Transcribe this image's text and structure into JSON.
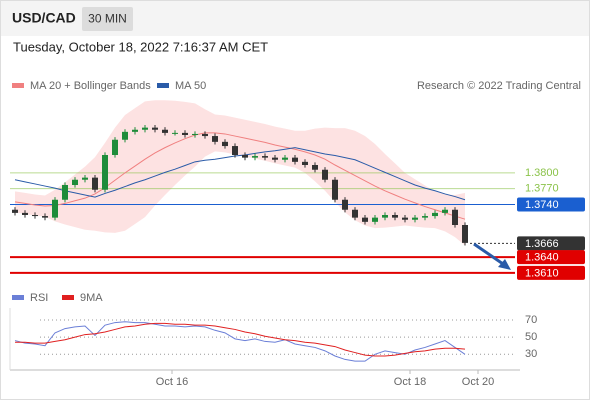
{
  "header": {
    "symbol": "USD/CAD",
    "timeframe": "30 MIN",
    "timestamp": "Tuesday, October 18, 2022 7:16:37 AM CET"
  },
  "chart_data": [
    {
      "type": "candlestick",
      "watermark": "Research © 2022 Trading Central",
      "up_color": "#1e8c3a",
      "down_color": "#333333",
      "xlim": [
        -0.5,
        49.5
      ],
      "ylim": [
        1.3587,
        1.3948
      ],
      "ohlc": [
        [
          1.373,
          1.3735,
          1.3719,
          1.3724
        ],
        [
          1.3724,
          1.3729,
          1.3715,
          1.372
        ],
        [
          1.372,
          1.3725,
          1.3713,
          1.3718
        ],
        [
          1.3718,
          1.3723,
          1.371,
          1.3715
        ],
        [
          1.3715,
          1.3754,
          1.371,
          1.3749
        ],
        [
          1.3749,
          1.3782,
          1.3744,
          1.3777
        ],
        [
          1.3777,
          1.3792,
          1.3772,
          1.3787
        ],
        [
          1.3787,
          1.3796,
          1.3782,
          1.3791
        ],
        [
          1.3791,
          1.3796,
          1.3763,
          1.3768
        ],
        [
          1.3768,
          1.3839,
          1.3763,
          1.3834
        ],
        [
          1.3834,
          1.3868,
          1.3829,
          1.3863
        ],
        [
          1.3863,
          1.3883,
          1.3858,
          1.3878
        ],
        [
          1.3878,
          1.3887,
          1.3873,
          1.3882
        ],
        [
          1.3882,
          1.3891,
          1.3877,
          1.3886
        ],
        [
          1.3886,
          1.3891,
          1.3877,
          1.3882
        ],
        [
          1.3882,
          1.3887,
          1.3871,
          1.3876
        ],
        [
          1.3876,
          1.3881,
          1.3871,
          1.3876
        ],
        [
          1.3876,
          1.3881,
          1.3867,
          1.3872
        ],
        [
          1.3872,
          1.3879,
          1.3867,
          1.3874
        ],
        [
          1.3874,
          1.3879,
          1.3865,
          1.387
        ],
        [
          1.387,
          1.3875,
          1.3854,
          1.3859
        ],
        [
          1.3859,
          1.3864,
          1.3846,
          1.3851
        ],
        [
          1.3851,
          1.3856,
          1.3829,
          1.3834
        ],
        [
          1.3834,
          1.3839,
          1.3824,
          1.3829
        ],
        [
          1.3829,
          1.3837,
          1.3824,
          1.3832
        ],
        [
          1.3832,
          1.3837,
          1.3824,
          1.3829
        ],
        [
          1.3829,
          1.3834,
          1.382,
          1.3825
        ],
        [
          1.3825,
          1.3834,
          1.382,
          1.3829
        ],
        [
          1.3829,
          1.3834,
          1.3816,
          1.3821
        ],
        [
          1.3821,
          1.3826,
          1.381,
          1.3815
        ],
        [
          1.3815,
          1.382,
          1.3801,
          1.3806
        ],
        [
          1.3806,
          1.3811,
          1.3782,
          1.3787
        ],
        [
          1.3787,
          1.3792,
          1.3744,
          1.3749
        ],
        [
          1.3749,
          1.3754,
          1.3725,
          1.373
        ],
        [
          1.373,
          1.3735,
          1.371,
          1.3715
        ],
        [
          1.3715,
          1.372,
          1.3702,
          1.3707
        ],
        [
          1.3707,
          1.372,
          1.3702,
          1.3715
        ],
        [
          1.3715,
          1.3725,
          1.371,
          1.372
        ],
        [
          1.372,
          1.3725,
          1.371,
          1.3715
        ],
        [
          1.3715,
          1.372,
          1.3706,
          1.3711
        ],
        [
          1.3711,
          1.372,
          1.3706,
          1.3715
        ],
        [
          1.3715,
          1.3723,
          1.371,
          1.3718
        ],
        [
          1.3718,
          1.3729,
          1.3713,
          1.3724
        ],
        [
          1.3724,
          1.3735,
          1.3719,
          1.373
        ],
        [
          1.373,
          1.3735,
          1.3696,
          1.3701
        ],
        [
          1.3701,
          1.3706,
          1.3662,
          1.3667
        ]
      ],
      "band": {
        "color": "#fde2e2",
        "upper": [
          1.3765,
          1.3762,
          1.3759,
          1.3757,
          1.3768,
          1.3782,
          1.3797,
          1.3812,
          1.383,
          1.3857,
          1.3886,
          1.391,
          1.3923,
          1.3936,
          1.3938,
          1.3938,
          1.3937,
          1.3935,
          1.3932,
          1.3921,
          1.3911,
          1.3909,
          1.3905,
          1.3901,
          1.3897,
          1.3893,
          1.3888,
          1.3884,
          1.388,
          1.388,
          1.3884,
          1.3886,
          1.3885,
          1.3885,
          1.388,
          1.387,
          1.3855,
          1.3836,
          1.3818,
          1.38,
          1.3788,
          1.3776,
          1.3765,
          1.3759,
          1.3758,
          1.3762
        ],
        "lower": [
          1.3725,
          1.3722,
          1.3719,
          1.3717,
          1.3708,
          1.3702,
          1.3697,
          1.3692,
          1.369,
          1.3687,
          1.3686,
          1.369,
          1.3703,
          1.3716,
          1.3738,
          1.3758,
          1.3777,
          1.3795,
          1.3812,
          1.3831,
          1.3841,
          1.3839,
          1.3835,
          1.3831,
          1.3827,
          1.3823,
          1.3818,
          1.3814,
          1.381,
          1.38,
          1.3784,
          1.3766,
          1.3745,
          1.3725,
          1.371,
          1.37,
          1.3695,
          1.3696,
          1.3698,
          1.37,
          1.3698,
          1.3696,
          1.3695,
          1.3689,
          1.3678,
          1.3662
        ]
      },
      "series": [
        {
          "name": "MA 20 + Bollinger Bands",
          "color": "#f08080",
          "values": [
            1.3745,
            1.3742,
            1.3739,
            1.3737,
            1.3738,
            1.3742,
            1.3747,
            1.3752,
            1.376,
            1.3772,
            1.3786,
            1.38,
            1.3813,
            1.3826,
            1.3838,
            1.3848,
            1.3857,
            1.3865,
            1.3872,
            1.3876,
            1.3876,
            1.3874,
            1.387,
            1.3866,
            1.3862,
            1.3858,
            1.3853,
            1.3849,
            1.3845,
            1.384,
            1.3834,
            1.3826,
            1.3815,
            1.3805,
            1.3795,
            1.3785,
            1.3775,
            1.3766,
            1.3758,
            1.375,
            1.3743,
            1.3736,
            1.373,
            1.3724,
            1.3718,
            1.3712
          ]
        },
        {
          "name": "MA 50",
          "color": "#2a5ba8",
          "values": [
            1.3787,
            1.3783,
            1.3779,
            1.3775,
            1.3771,
            1.3766,
            1.3762,
            1.3758,
            1.3754,
            1.3761,
            1.3767,
            1.3774,
            1.3781,
            1.3787,
            1.3794,
            1.3801,
            1.3807,
            1.3814,
            1.3821,
            1.3824,
            1.3826,
            1.3829,
            1.3832,
            1.3834,
            1.3837,
            1.384,
            1.3842,
            1.3845,
            1.3848,
            1.3844,
            1.384,
            1.3836,
            1.3833,
            1.3829,
            1.3825,
            1.3817,
            1.3809,
            1.3801,
            1.3793,
            1.3785,
            1.3777,
            1.3771,
            1.3766,
            1.376,
            1.3755,
            1.3749
          ]
        }
      ],
      "levels": [
        {
          "value": 1.38,
          "label": "1.3800",
          "color": "#8bc34a",
          "style": "text"
        },
        {
          "value": 1.377,
          "label": "1.3770",
          "color": "#8bc34a",
          "style": "text"
        },
        {
          "value": 1.374,
          "label": "1.3740",
          "color": "#1a5fd0",
          "style": "box"
        },
        {
          "value": 1.3666,
          "label": "1.3666",
          "color": "#333333",
          "style": "dotted"
        },
        {
          "value": 1.364,
          "label": "1.3640",
          "color": "#e00000",
          "style": "box"
        },
        {
          "value": 1.361,
          "label": "1.3610",
          "color": "#e00000",
          "style": "box"
        }
      ]
    },
    {
      "type": "line",
      "xlim": [
        -0.5,
        49.5
      ],
      "ylim": [
        14,
        84
      ],
      "yticks": [
        30,
        50,
        70
      ],
      "xticks": [
        {
          "value": 15.7,
          "label": "Oct 16"
        },
        {
          "value": 39.5,
          "label": "Oct 18"
        },
        {
          "value": 46.3,
          "label": "Oct 20"
        }
      ],
      "series": [
        {
          "name": "RSI",
          "color": "#6b7fd7",
          "values": [
            46,
            43,
            42,
            40,
            55,
            60,
            62,
            63,
            52,
            64,
            67,
            68,
            67,
            67,
            65,
            63,
            63,
            62,
            63,
            62,
            58,
            55,
            48,
            46,
            48,
            45,
            44,
            47,
            42,
            40,
            38,
            34,
            28,
            24,
            22,
            22,
            30,
            34,
            32,
            30,
            35,
            38,
            42,
            46,
            38,
            30
          ]
        },
        {
          "name": "9MA",
          "color": "#e02020",
          "values": [
            44,
            44,
            43,
            43,
            45,
            47,
            50,
            53,
            54,
            56,
            59,
            62,
            63,
            65,
            66,
            66,
            65,
            65,
            64,
            64,
            63,
            61,
            59,
            56,
            54,
            51,
            49,
            47,
            46,
            44,
            43,
            41,
            39,
            35,
            32,
            29,
            28,
            28,
            29,
            31,
            33,
            34,
            36,
            37,
            37,
            36
          ]
        }
      ]
    }
  ]
}
